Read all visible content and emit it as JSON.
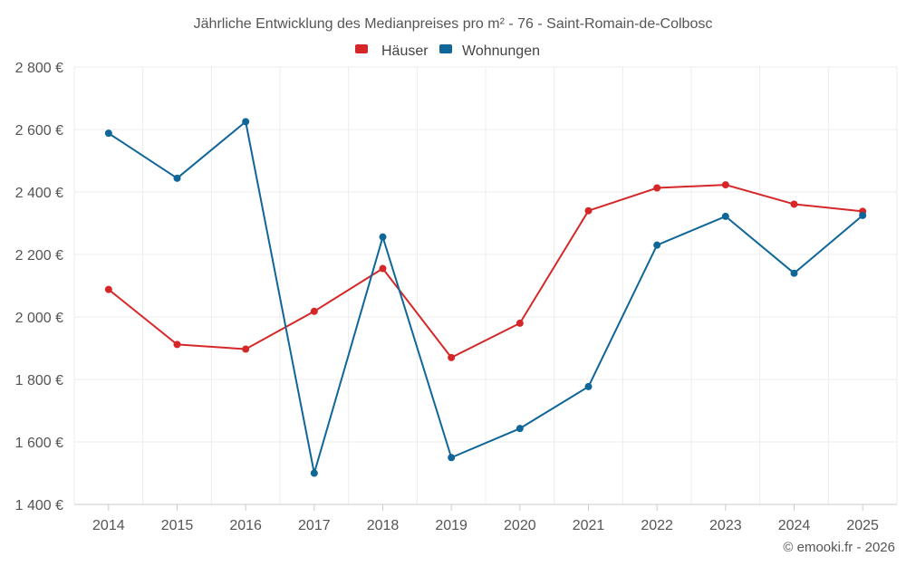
{
  "chart_data": {
    "type": "line",
    "title": "Jährliche Entwicklung des Medianpreises pro m² - 76 - Saint-Romain-de-Colbosc",
    "xlabel": "",
    "ylabel": "",
    "categories": [
      "2014",
      "2015",
      "2016",
      "2017",
      "2018",
      "2019",
      "2020",
      "2021",
      "2022",
      "2023",
      "2024",
      "2025"
    ],
    "ylim": [
      1400,
      2800
    ],
    "yticks": [
      1400,
      1600,
      1800,
      2000,
      2200,
      2400,
      2600,
      2800
    ],
    "ytick_labels": [
      "1 400 €",
      "1 600 €",
      "1 800 €",
      "2 000 €",
      "2 200 €",
      "2 400 €",
      "2 600 €",
      "2 800 €"
    ],
    "grid": true,
    "legend_position": "top-center",
    "series": [
      {
        "name": "Häuser",
        "color": "#d62728",
        "values": [
          2088,
          1912,
          1897,
          2018,
          2155,
          1870,
          1980,
          2340,
          2413,
          2423,
          2361,
          2338
        ]
      },
      {
        "name": "Wohnungen",
        "color": "#0f6698",
        "values": [
          2588,
          2444,
          2625,
          1500,
          2256,
          1550,
          1643,
          1777,
          2230,
          2322,
          2140,
          2325
        ]
      }
    ],
    "credit": "© emooki.fr - 2026"
  }
}
